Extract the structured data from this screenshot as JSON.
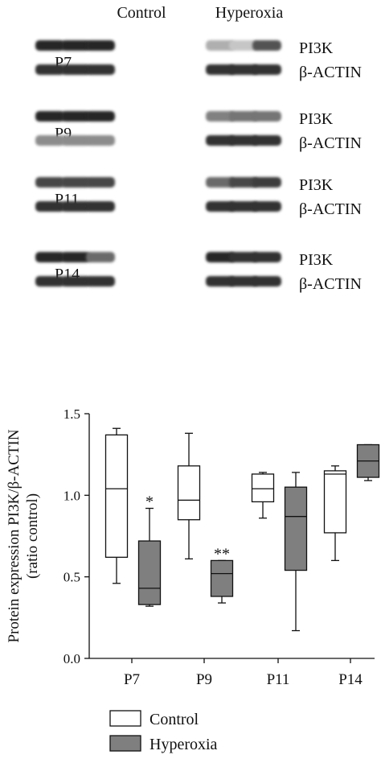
{
  "blot": {
    "group_headers": [
      "Control",
      "Hyperoxia"
    ],
    "panels": [
      {
        "timepoint": "P7",
        "protein": "PI3K",
        "control": "β-ACTIN",
        "pi3k_intensity": [
          0.95,
          0.95,
          0.95,
          0.35,
          0.25,
          0.75
        ],
        "actin_intensity": [
          0.9,
          0.9,
          0.9,
          0.9,
          0.9,
          0.9
        ]
      },
      {
        "timepoint": "P9",
        "protein": "PI3K",
        "control": "β-ACTIN",
        "pi3k_intensity": [
          0.95,
          0.95,
          0.95,
          0.55,
          0.6,
          0.6
        ],
        "actin_intensity": [
          0.5,
          0.5,
          0.5,
          0.9,
          0.9,
          0.9
        ]
      },
      {
        "timepoint": "P11",
        "protein": "PI3K",
        "control": "β-ACTIN",
        "pi3k_intensity": [
          0.8,
          0.8,
          0.8,
          0.65,
          0.8,
          0.85
        ],
        "actin_intensity": [
          0.9,
          0.9,
          0.9,
          0.9,
          0.9,
          0.9
        ]
      },
      {
        "timepoint": "P14",
        "protein": "PI3K",
        "control": "β-ACTIN",
        "pi3k_intensity": [
          0.95,
          0.95,
          0.65,
          0.95,
          0.9,
          0.9
        ],
        "actin_intensity": [
          0.9,
          0.9,
          0.9,
          0.9,
          0.9,
          0.9
        ]
      }
    ]
  },
  "chart_data": {
    "type": "boxplot",
    "ylabel": "Protein expression PI3K/β-ACTIN",
    "ylabel2": "(ratio control)",
    "ylim": [
      0.0,
      1.5
    ],
    "yticks": [
      "0.0",
      "0.5",
      "1.0",
      "1.5"
    ],
    "categories": [
      "P7",
      "P9",
      "P11",
      "P14"
    ],
    "series": [
      {
        "name": "Control",
        "color": "#ffffff",
        "boxes": [
          {
            "min": 0.46,
            "q1": 0.62,
            "median": 1.04,
            "q3": 1.37,
            "max": 1.41
          },
          {
            "min": 0.61,
            "q1": 0.85,
            "median": 0.97,
            "q3": 1.18,
            "max": 1.38
          },
          {
            "min": 0.86,
            "q1": 0.96,
            "median": 1.04,
            "q3": 1.13,
            "max": 1.14
          },
          {
            "min": 0.6,
            "q1": 0.77,
            "median": 1.13,
            "q3": 1.15,
            "max": 1.18
          }
        ]
      },
      {
        "name": "Hyperoxia",
        "color": "#7f7f7f",
        "boxes": [
          {
            "min": 0.32,
            "q1": 0.33,
            "median": 0.43,
            "q3": 0.72,
            "max": 0.92
          },
          {
            "min": 0.34,
            "q1": 0.38,
            "median": 0.52,
            "q3": 0.6,
            "max": 0.6
          },
          {
            "min": 0.17,
            "q1": 0.54,
            "median": 0.87,
            "q3": 1.05,
            "max": 1.14
          },
          {
            "min": 1.09,
            "q1": 1.11,
            "median": 1.21,
            "q3": 1.31,
            "max": 1.31
          }
        ]
      }
    ],
    "annotations": [
      {
        "category": "P7",
        "series": "Hyperoxia",
        "text": "*"
      },
      {
        "category": "P9",
        "series": "Hyperoxia",
        "text": "**"
      }
    ],
    "legend": {
      "position": "bottom-left",
      "entries": [
        "Control",
        "Hyperoxia"
      ]
    },
    "grid": false
  }
}
